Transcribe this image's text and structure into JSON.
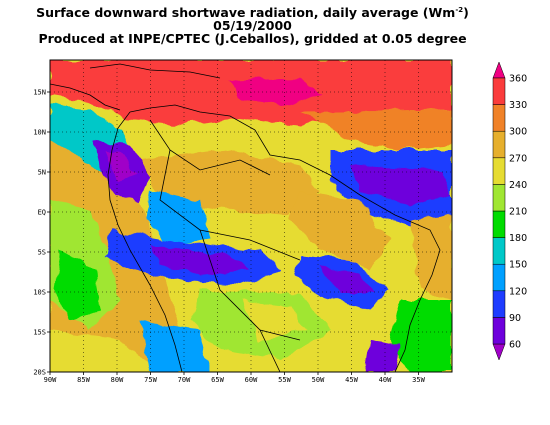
{
  "title": {
    "line1": "Surface downward shortwave radiation, daily average (Wm",
    "line1_sup": "-2",
    "line1_end": ")",
    "line2": "05/19/2000",
    "line3": "Produced at INPE/CPTEC (J.Ceballos), gridded at 0.05 degree"
  },
  "map": {
    "lon_range": [
      -90,
      -30
    ],
    "lat_range": [
      -20,
      19
    ],
    "lat_ticks": [
      {
        "value": 15,
        "label": "15N"
      },
      {
        "value": 10,
        "label": "10N"
      },
      {
        "value": 5,
        "label": "5N"
      },
      {
        "value": 0,
        "label": "EQ"
      },
      {
        "value": -5,
        "label": "5S"
      },
      {
        "value": -10,
        "label": "10S"
      },
      {
        "value": -15,
        "label": "15S"
      },
      {
        "value": -20,
        "label": "20S"
      }
    ],
    "lon_ticks": [
      {
        "value": -90,
        "label": "90W"
      },
      {
        "value": -85,
        "label": "85W"
      },
      {
        "value": -80,
        "label": "80W"
      },
      {
        "value": -75,
        "label": "75W"
      },
      {
        "value": -70,
        "label": "70W"
      },
      {
        "value": -65,
        "label": "65W"
      },
      {
        "value": -60,
        "label": "60W"
      },
      {
        "value": -55,
        "label": "55W"
      },
      {
        "value": -50,
        "label": "50W"
      },
      {
        "value": -45,
        "label": "45W"
      },
      {
        "value": -40,
        "label": "40W"
      },
      {
        "value": -35,
        "label": "35W"
      }
    ]
  },
  "colorbar": {
    "levels": [
      "60",
      "90",
      "120",
      "150",
      "180",
      "210",
      "240",
      "270",
      "300",
      "330",
      "360"
    ],
    "colors": [
      "#a000c8",
      "#6e00dc",
      "#1e3cff",
      "#00a0ff",
      "#00c8c8",
      "#00dc00",
      "#a0e632",
      "#e6dc32",
      "#e6af2d",
      "#f08228",
      "#fa3c3c",
      "#f00082"
    ]
  },
  "colors": {
    "land_border": "#000000",
    "grid": "#000000"
  }
}
